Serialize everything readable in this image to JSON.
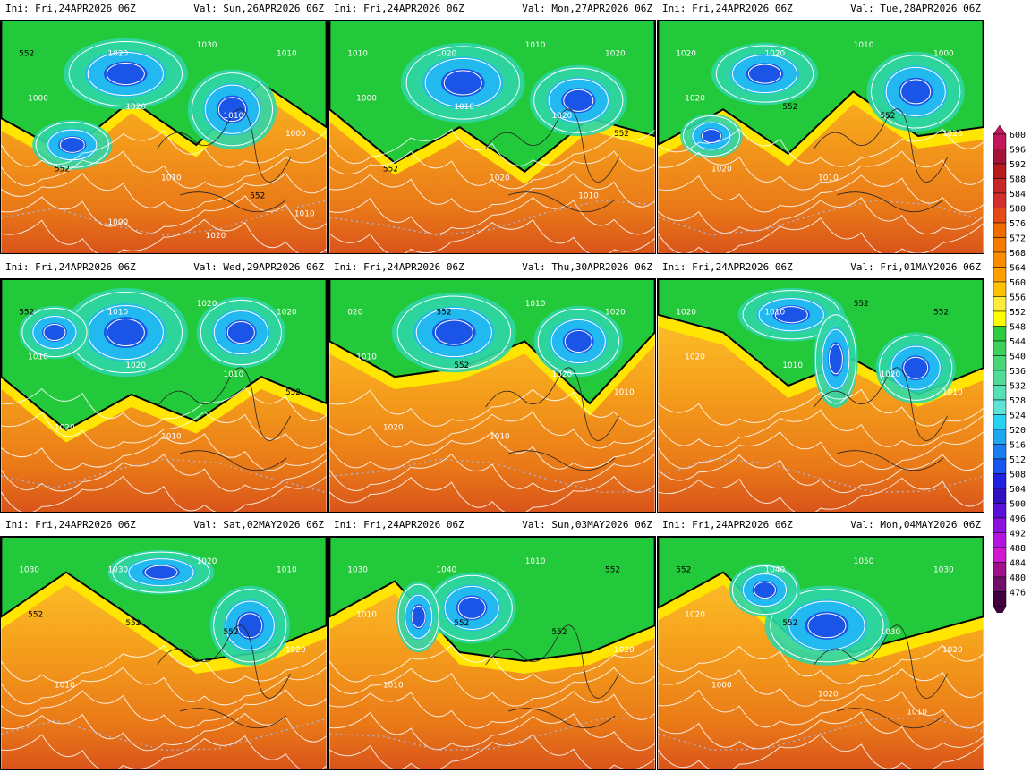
{
  "panels": [
    {
      "init": "Ini: Fri,24APR2026 06Z",
      "valid": "Val: Sun,26APR2026 06Z",
      "isobars": [
        "552",
        "1020",
        "1030",
        "1010",
        "1000",
        "1020",
        "1010",
        "1000",
        "552",
        "1010",
        "552",
        "1000",
        "1020",
        "1010"
      ],
      "palette": "a"
    },
    {
      "init": "Ini: Fri,24APR2026 06Z",
      "valid": "Val: Mon,27APR2026 06Z",
      "isobars": [
        "1010",
        "1020",
        "1010",
        "1020",
        "1000",
        "1010",
        "1020",
        "552",
        "552",
        "1020",
        "1010"
      ],
      "palette": "b"
    },
    {
      "init": "Ini: Fri,24APR2026 06Z",
      "valid": "Val: Tue,28APR2026 06Z",
      "isobars": [
        "1020",
        "1020",
        "1010",
        "1000",
        "1020",
        "552",
        "552",
        "1020",
        "1020",
        "1010"
      ],
      "palette": "c"
    },
    {
      "init": "Ini: Fri,24APR2026 06Z",
      "valid": "Val: Wed,29APR2026 06Z",
      "isobars": [
        "552",
        "1010",
        "1020",
        "1020",
        "1010",
        "1020",
        "1010",
        "552",
        "1020",
        "1010"
      ],
      "palette": "d"
    },
    {
      "init": "Ini: Fri,24APR2026 06Z",
      "valid": "Val: Thu,30APR2026 06Z",
      "isobars": [
        "020",
        "552",
        "1010",
        "1020",
        "1010",
        "552",
        "1020",
        "1010",
        "1020",
        "1010"
      ],
      "palette": "e"
    },
    {
      "init": "Ini: Fri,24APR2026 06Z",
      "valid": "Val: Fri,01MAY2026 06Z",
      "isobars": [
        "1020",
        "1010",
        "552",
        "552",
        "1020",
        "1010",
        "1020",
        "1010"
      ],
      "palette": "f"
    },
    {
      "init": "Ini: Fri,24APR2026 06Z",
      "valid": "Val: Sat,02MAY2026 06Z",
      "isobars": [
        "1030",
        "1030",
        "1020",
        "1010",
        "552",
        "552",
        "552",
        "1020",
        "1010"
      ],
      "palette": "g"
    },
    {
      "init": "Ini: Fri,24APR2026 06Z",
      "valid": "Val: Sun,03MAY2026 06Z",
      "isobars": [
        "1030",
        "1040",
        "1010",
        "552",
        "1010",
        "552",
        "552",
        "1020",
        "1010"
      ],
      "palette": "h"
    },
    {
      "init": "Ini: Fri,24APR2026 06Z",
      "valid": "Val: Mon,04MAY2026 06Z",
      "isobars": [
        "552",
        "1040",
        "1050",
        "1030",
        "1020",
        "552",
        "1030",
        "1020",
        "1000",
        "1020",
        "1010"
      ],
      "palette": "i"
    }
  ],
  "colorbar": {
    "labels": [
      "600",
      "596",
      "592",
      "588",
      "584",
      "580",
      "576",
      "572",
      "568",
      "564",
      "560",
      "556",
      "552",
      "548",
      "544",
      "540",
      "536",
      "532",
      "528",
      "524",
      "520",
      "516",
      "512",
      "508",
      "504",
      "500",
      "496",
      "492",
      "488",
      "484",
      "480",
      "476"
    ],
    "colors": [
      "#c2185b",
      "#a3143a",
      "#b71c1c",
      "#c62828",
      "#d32f2f",
      "#e64a19",
      "#ef6c00",
      "#f57c00",
      "#fb8c00",
      "#ffa000",
      "#ffc107",
      "#ffeb3b",
      "#ffff00",
      "#2ecc40",
      "#3bd15a",
      "#46d878",
      "#4fdc98",
      "#55e0b8",
      "#5ce4d6",
      "#27d3f0",
      "#1ea8f0",
      "#1a7df0",
      "#1a55f0",
      "#2020e0",
      "#3010c0",
      "#5a10d8",
      "#8c10e0",
      "#b414e0",
      "#d018d0",
      "#a0108c",
      "#70106a",
      "#400040"
    ]
  }
}
